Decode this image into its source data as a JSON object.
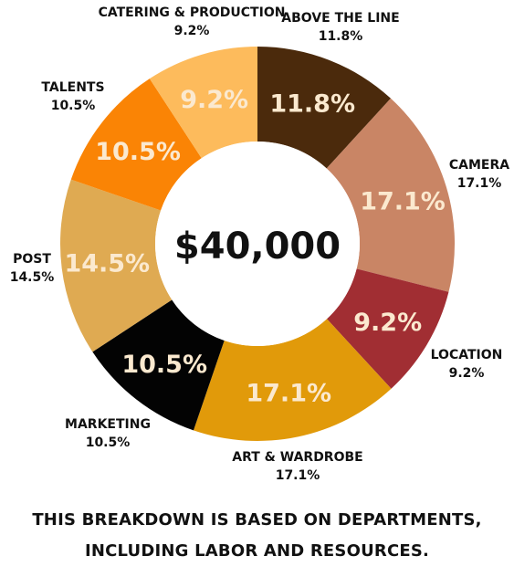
{
  "chart_data": {
    "type": "pie",
    "center_label": "$40,000",
    "slices": [
      {
        "label": "ABOVE THE LINE",
        "value": 11.8,
        "display": "11.8%",
        "color": "#4b2a0c"
      },
      {
        "label": "CAMERA",
        "value": 17.1,
        "display": "17.1%",
        "color": "#c98565"
      },
      {
        "label": "LOCATION",
        "value": 9.2,
        "display": "9.2%",
        "color": "#a12e33"
      },
      {
        "label": "ART & WARDROBE",
        "value": 17.1,
        "display": "17.1%",
        "color": "#e19a0a"
      },
      {
        "label": "MARKETING",
        "value": 10.5,
        "display": "10.5%",
        "color": "#030303"
      },
      {
        "label": "POST",
        "value": 14.5,
        "display": "14.5%",
        "color": "#dfaa52"
      },
      {
        "label": "TALENTS",
        "value": 10.5,
        "display": "10.5%",
        "color": "#fa8405"
      },
      {
        "label": "CATERING & PRODUCTION",
        "value": 9.2,
        "display": "9.2%",
        "color": "#fdbb5c"
      }
    ]
  },
  "footnote": {
    "line1": "THIS BREAKDOWN IS BASED ON DEPARTMENTS,",
    "line2": "INCLUDING LABOR AND RESOURCES."
  }
}
